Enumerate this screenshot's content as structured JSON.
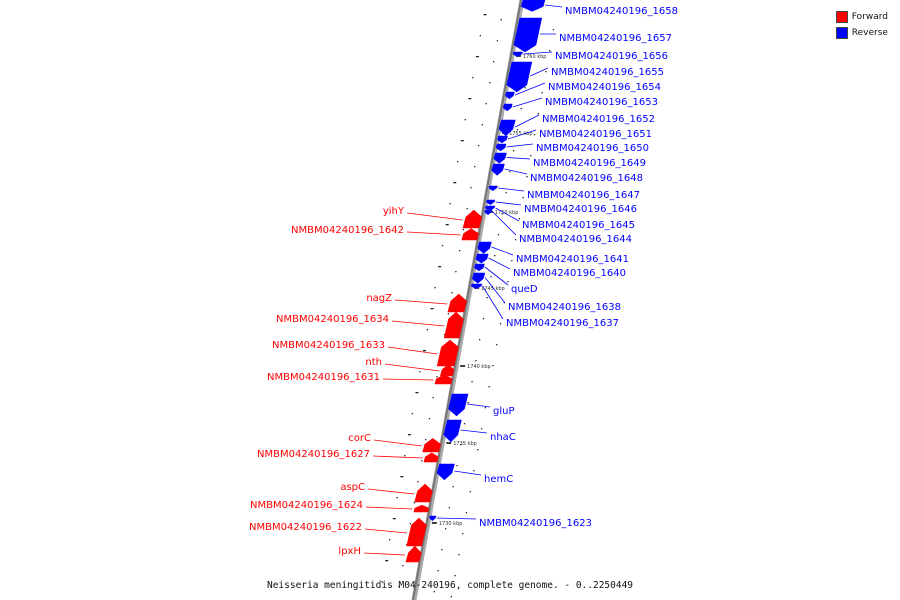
{
  "caption": "Neisseria meningitidis M04-240196, complete genome. - 0..2250449",
  "legend": [
    {
      "label": "Forward",
      "color": "#ff0000"
    },
    {
      "label": "Reverse",
      "color": "#0000ff"
    }
  ],
  "colors": {
    "forward": "#ff0000",
    "reverse": "#0000ff",
    "backbone": "#777777"
  },
  "ticks": [
    "1760 kbp",
    "1755 kbp",
    "1750 kbp",
    "1745 kbp",
    "1740 kbp",
    "1735 kbp",
    "1730 kbp"
  ],
  "genes": [
    {
      "name": "NMBM04240196_1658",
      "strand": "reverse"
    },
    {
      "name": "NMBM04240196_1657",
      "strand": "reverse"
    },
    {
      "name": "NMBM04240196_1656",
      "strand": "reverse"
    },
    {
      "name": "NMBM04240196_1655",
      "strand": "reverse"
    },
    {
      "name": "NMBM04240196_1654",
      "strand": "reverse"
    },
    {
      "name": "NMBM04240196_1653",
      "strand": "reverse"
    },
    {
      "name": "NMBM04240196_1652",
      "strand": "reverse"
    },
    {
      "name": "NMBM04240196_1651",
      "strand": "reverse"
    },
    {
      "name": "NMBM04240196_1650",
      "strand": "reverse"
    },
    {
      "name": "NMBM04240196_1649",
      "strand": "reverse"
    },
    {
      "name": "NMBM04240196_1648",
      "strand": "reverse"
    },
    {
      "name": "NMBM04240196_1647",
      "strand": "reverse"
    },
    {
      "name": "NMBM04240196_1646",
      "strand": "reverse"
    },
    {
      "name": "NMBM04240196_1645",
      "strand": "reverse"
    },
    {
      "name": "NMBM04240196_1644",
      "strand": "reverse"
    },
    {
      "name": "NMBM04240196_1641",
      "strand": "reverse"
    },
    {
      "name": "NMBM04240196_1640",
      "strand": "reverse"
    },
    {
      "name": "queD",
      "strand": "reverse"
    },
    {
      "name": "NMBM04240196_1638",
      "strand": "reverse"
    },
    {
      "name": "NMBM04240196_1637",
      "strand": "reverse"
    },
    {
      "name": "gluP",
      "strand": "reverse"
    },
    {
      "name": "nhaC",
      "strand": "reverse"
    },
    {
      "name": "hemC",
      "strand": "reverse"
    },
    {
      "name": "NMBM04240196_1623",
      "strand": "reverse"
    },
    {
      "name": "yihY",
      "strand": "forward"
    },
    {
      "name": "NMBM04240196_1642",
      "strand": "forward"
    },
    {
      "name": "nagZ",
      "strand": "forward"
    },
    {
      "name": "NMBM04240196_1634",
      "strand": "forward"
    },
    {
      "name": "NMBM04240196_1633",
      "strand": "forward"
    },
    {
      "name": "nth",
      "strand": "forward"
    },
    {
      "name": "NMBM04240196_1631",
      "strand": "forward"
    },
    {
      "name": "corC",
      "strand": "forward"
    },
    {
      "name": "NMBM04240196_1627",
      "strand": "forward"
    },
    {
      "name": "aspC",
      "strand": "forward"
    },
    {
      "name": "NMBM04240196_1624",
      "strand": "forward"
    },
    {
      "name": "NMBM04240196_1622",
      "strand": "forward"
    },
    {
      "name": "lpxH",
      "strand": "forward"
    }
  ]
}
